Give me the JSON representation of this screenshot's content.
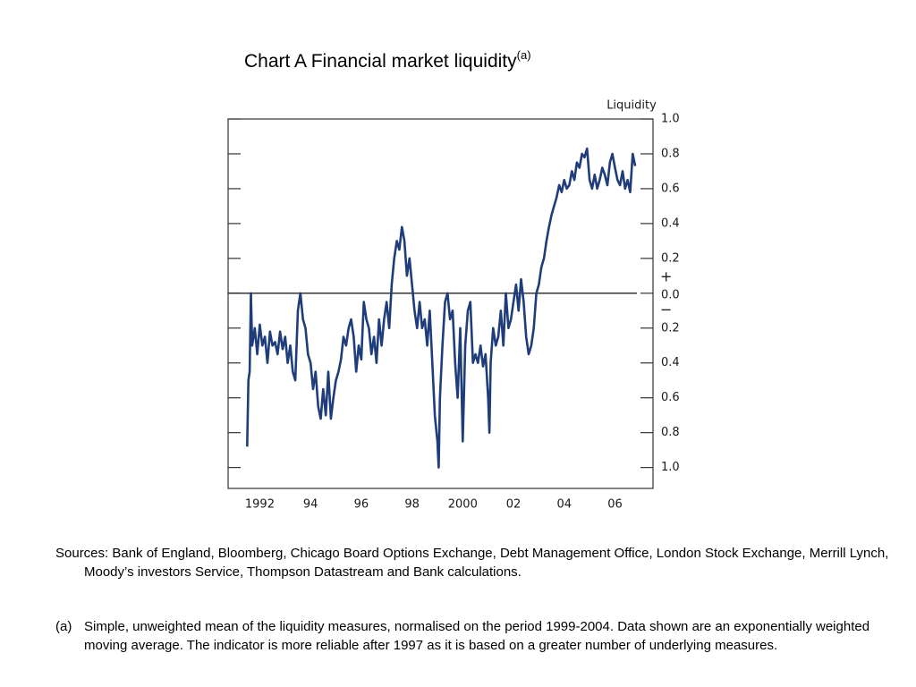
{
  "chart_data": {
    "type": "line",
    "title": "Chart A Financial market liquidity",
    "title_superscript": "(a)",
    "y_axis_label": "Liquidity",
    "annotations": [
      "+",
      "−"
    ],
    "xlim": [
      1990.75,
      2007.5
    ],
    "xticks": [
      1992,
      {
        "value": 1994,
        "label": "94"
      },
      {
        "value": 1996,
        "label": "96"
      },
      {
        "value": 1998,
        "label": "98"
      },
      2000,
      {
        "value": 2002,
        "label": "02"
      },
      {
        "value": 2004,
        "label": "04"
      },
      {
        "value": 2006,
        "label": "06"
      }
    ],
    "ylim": [
      -1.12,
      1.0
    ],
    "yticks": [
      {
        "value": 1,
        "label": "1.0"
      },
      0.8,
      0.6,
      0.4,
      0.2,
      {
        "value": 0,
        "label": "0.0"
      },
      {
        "value": -0.2,
        "label": "0.2"
      },
      {
        "value": -0.4,
        "label": "0.4"
      },
      {
        "value": -0.6,
        "label": "0.6"
      },
      {
        "value": -0.8,
        "label": "0.8"
      },
      {
        "value": -1,
        "label": "1.0"
      }
    ],
    "zero_line": true,
    "series": [
      {
        "color": "#1f3d7a",
        "x": [
          1991.5,
          1991.55,
          1991.6,
          1991.65,
          1991.7,
          1991.8,
          1991.9,
          1992.0,
          1992.1,
          1992.2,
          1992.3,
          1992.4,
          1992.5,
          1992.6,
          1992.7,
          1992.8,
          1992.9,
          1993.0,
          1993.1,
          1993.2,
          1993.3,
          1993.4,
          1993.5,
          1993.6,
          1993.7,
          1993.8,
          1993.9,
          1994.0,
          1994.1,
          1994.2,
          1994.3,
          1994.4,
          1994.5,
          1994.6,
          1994.7,
          1994.8,
          1994.9,
          1995.0,
          1995.1,
          1995.2,
          1995.3,
          1995.4,
          1995.5,
          1995.6,
          1995.7,
          1995.8,
          1995.9,
          1996.0,
          1996.1,
          1996.2,
          1996.3,
          1996.4,
          1996.5,
          1996.6,
          1996.7,
          1996.8,
          1996.9,
          1997.0,
          1997.1,
          1997.2,
          1997.3,
          1997.4,
          1997.5,
          1997.6,
          1997.7,
          1997.8,
          1997.9,
          1998.0,
          1998.1,
          1998.2,
          1998.3,
          1998.4,
          1998.5,
          1998.6,
          1998.7,
          1998.8,
          1998.9,
          1999.0,
          1999.05,
          1999.1,
          1999.2,
          1999.3,
          1999.4,
          1999.5,
          1999.6,
          1999.7,
          1999.8,
          1999.9,
          2000.0,
          2000.1,
          2000.2,
          2000.3,
          2000.4,
          2000.5,
          2000.6,
          2000.7,
          2000.8,
          2000.9,
          2001.0,
          2001.05,
          2001.1,
          2001.2,
          2001.3,
          2001.4,
          2001.5,
          2001.6,
          2001.7,
          2001.8,
          2001.9,
          2002.0,
          2002.1,
          2002.2,
          2002.3,
          2002.4,
          2002.5,
          2002.6,
          2002.7,
          2002.8,
          2002.9,
          2003.0,
          2003.1,
          2003.2,
          2003.3,
          2003.4,
          2003.5,
          2003.6,
          2003.7,
          2003.8,
          2003.9,
          2004.0,
          2004.1,
          2004.2,
          2004.3,
          2004.4,
          2004.5,
          2004.6,
          2004.7,
          2004.8,
          2004.9,
          2005.0,
          2005.1,
          2005.2,
          2005.3,
          2005.4,
          2005.5,
          2005.6,
          2005.7,
          2005.8,
          2005.9,
          2006.0,
          2006.1,
          2006.2,
          2006.3,
          2006.4,
          2006.5,
          2006.6,
          2006.7,
          2006.8
        ],
        "values": [
          -0.88,
          -0.5,
          -0.45,
          0.0,
          -0.3,
          -0.2,
          -0.35,
          -0.18,
          -0.3,
          -0.25,
          -0.4,
          -0.22,
          -0.3,
          -0.28,
          -0.35,
          -0.22,
          -0.32,
          -0.25,
          -0.4,
          -0.3,
          -0.45,
          -0.5,
          -0.1,
          0.0,
          -0.15,
          -0.2,
          -0.35,
          -0.4,
          -0.55,
          -0.45,
          -0.65,
          -0.72,
          -0.55,
          -0.7,
          -0.45,
          -0.72,
          -0.6,
          -0.5,
          -0.45,
          -0.38,
          -0.25,
          -0.3,
          -0.2,
          -0.15,
          -0.25,
          -0.45,
          -0.3,
          -0.38,
          -0.05,
          -0.15,
          -0.2,
          -0.35,
          -0.25,
          -0.4,
          -0.15,
          -0.3,
          -0.15,
          -0.05,
          -0.2,
          0.05,
          0.2,
          0.3,
          0.25,
          0.38,
          0.3,
          0.1,
          0.2,
          0.05,
          -0.1,
          -0.2,
          -0.05,
          -0.2,
          -0.15,
          -0.3,
          -0.1,
          -0.4,
          -0.7,
          -0.85,
          -1.0,
          -0.6,
          -0.3,
          -0.05,
          0.0,
          -0.15,
          -0.1,
          -0.4,
          -0.6,
          -0.2,
          -0.85,
          -0.3,
          -0.1,
          -0.05,
          -0.4,
          -0.35,
          -0.4,
          -0.3,
          -0.42,
          -0.35,
          -0.6,
          -0.8,
          -0.4,
          -0.2,
          -0.3,
          -0.25,
          -0.1,
          -0.3,
          0.0,
          -0.2,
          -0.15,
          -0.05,
          0.05,
          -0.1,
          0.08,
          -0.05,
          -0.25,
          -0.35,
          -0.3,
          -0.2,
          0.0,
          0.05,
          0.15,
          0.2,
          0.3,
          0.38,
          0.45,
          0.5,
          0.55,
          0.62,
          0.58,
          0.65,
          0.6,
          0.62,
          0.7,
          0.65,
          0.75,
          0.72,
          0.8,
          0.78,
          0.83,
          0.65,
          0.6,
          0.68,
          0.6,
          0.65,
          0.72,
          0.68,
          0.62,
          0.75,
          0.8,
          0.72,
          0.65,
          0.62,
          0.7,
          0.6,
          0.65,
          0.58,
          0.8,
          0.73
        ]
      }
    ]
  },
  "footnotes": {
    "sources": "Sources: Bank of England, Bloomberg, Chicago Board Options Exchange, Debt Management Office, London Stock Exchange, Merrill Lynch, Moody’s investors Service, Thompson Datastream and Bank calculations.",
    "note_label": "(a)",
    "note": "Simple, unweighted mean of the liquidity measures, normalised on the period 1999-2004. Data shown are an exponentially weighted moving average. The indicator is more reliable after 1997 as it is based on a greater number of underlying measures."
  }
}
